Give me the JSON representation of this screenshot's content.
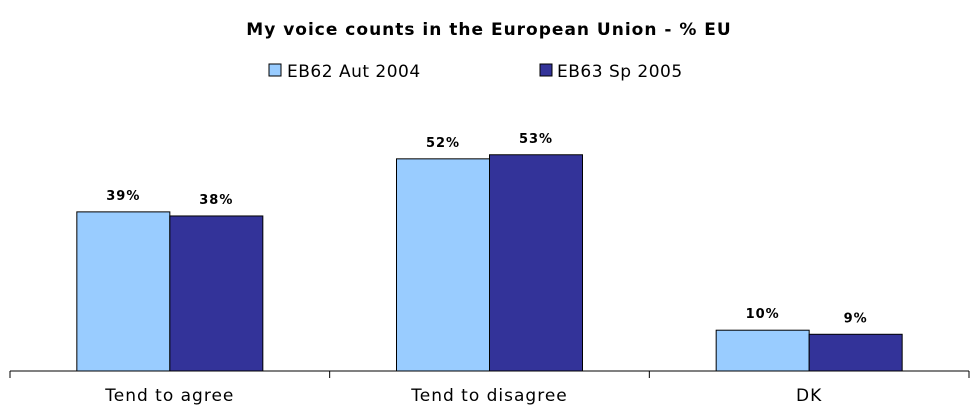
{
  "chart_data": {
    "type": "bar",
    "title": "My voice counts in the European Union - % EU",
    "categories": [
      "Tend to agree",
      "Tend to disagree",
      "DK"
    ],
    "series": [
      {
        "name": "EB62 Aut 2004",
        "values": [
          39,
          52,
          10
        ],
        "labels": [
          "39%",
          "52%",
          "10%"
        ],
        "color": "#99ccff"
      },
      {
        "name": "EB63 Sp 2005",
        "values": [
          38,
          53,
          9
        ],
        "labels": [
          "38%",
          "53%",
          "9%"
        ],
        "color": "#333399"
      }
    ],
    "ylim": [
      0,
      60
    ],
    "grid": false,
    "legend_position": "top"
  }
}
